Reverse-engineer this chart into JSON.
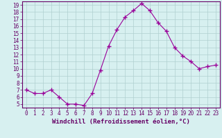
{
  "x": [
    0,
    1,
    2,
    3,
    4,
    5,
    6,
    7,
    8,
    9,
    10,
    11,
    12,
    13,
    14,
    15,
    16,
    17,
    18,
    19,
    20,
    21,
    22,
    23
  ],
  "y": [
    7.0,
    6.5,
    6.5,
    7.0,
    6.0,
    5.0,
    5.0,
    4.8,
    6.5,
    9.8,
    13.2,
    15.5,
    17.3,
    18.2,
    19.2,
    18.2,
    16.5,
    15.3,
    13.0,
    11.8,
    11.0,
    10.0,
    10.3,
    10.5
  ],
  "line_color": "#990099",
  "marker": "+",
  "marker_size": 4,
  "marker_linewidth": 1.0,
  "bg_color": "#d7f0f0",
  "grid_color": "#b0d0d0",
  "xlabel": "Windchill (Refroidissement éolien,°C)",
  "xlim": [
    -0.5,
    23.5
  ],
  "ylim": [
    4.5,
    19.5
  ],
  "yticks": [
    5,
    6,
    7,
    8,
    9,
    10,
    11,
    12,
    13,
    14,
    15,
    16,
    17,
    18,
    19
  ],
  "xticks": [
    0,
    1,
    2,
    3,
    4,
    5,
    6,
    7,
    8,
    9,
    10,
    11,
    12,
    13,
    14,
    15,
    16,
    17,
    18,
    19,
    20,
    21,
    22,
    23
  ],
  "axis_color": "#660066",
  "tick_label_fontsize": 5.5,
  "xlabel_fontsize": 6.5
}
